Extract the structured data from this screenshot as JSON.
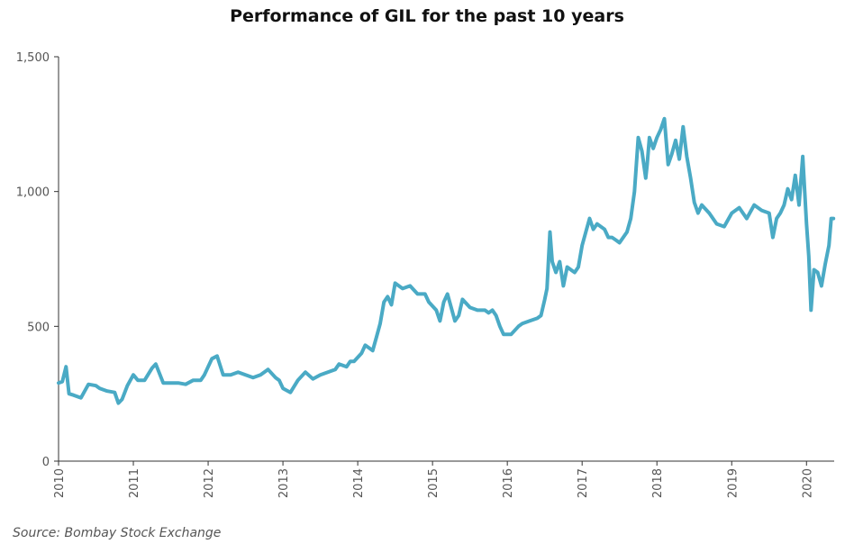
{
  "chart_data": {
    "type": "line",
    "title": "Performance of GIL for the past 10 years",
    "xlabel": "",
    "ylabel": "",
    "ylim": [
      0,
      1500
    ],
    "yticks": [
      {
        "value": 0,
        "label": "0"
      },
      {
        "value": 500,
        "label": "500"
      },
      {
        "value": 1000,
        "label": "1,000"
      },
      {
        "value": 1500,
        "label": "1,500"
      }
    ],
    "xlim": [
      2010.0,
      2020.37
    ],
    "xticks": [
      {
        "value": 2010,
        "label": "2010"
      },
      {
        "value": 2011,
        "label": "2011"
      },
      {
        "value": 2012,
        "label": "2012"
      },
      {
        "value": 2013,
        "label": "2013"
      },
      {
        "value": 2014,
        "label": "2014"
      },
      {
        "value": 2015,
        "label": "2015"
      },
      {
        "value": 2016,
        "label": "2016"
      },
      {
        "value": 2017,
        "label": "2017"
      },
      {
        "value": 2018,
        "label": "2018"
      },
      {
        "value": 2019,
        "label": "2019"
      },
      {
        "value": 2020,
        "label": "2020"
      }
    ],
    "grid": false,
    "legend": "none",
    "line_color": "#4aaac5",
    "series": [
      {
        "x": [
          2010.0,
          2010.05,
          2010.1,
          2010.14,
          2010.2,
          2010.3,
          2010.4,
          2010.5,
          2010.55,
          2010.65,
          2010.75,
          2010.8,
          2010.85,
          2010.92,
          2011.0,
          2011.06,
          2011.15,
          2011.25,
          2011.3,
          2011.4,
          2011.5,
          2011.6,
          2011.7,
          2011.8,
          2011.9,
          2011.95,
          2012.05,
          2012.12,
          2012.2,
          2012.3,
          2012.4,
          2012.5,
          2012.6,
          2012.7,
          2012.8,
          2012.9,
          2012.95,
          2013.0,
          2013.1,
          2013.2,
          2013.3,
          2013.4,
          2013.5,
          2013.6,
          2013.7,
          2013.75,
          2013.85,
          2013.9,
          2013.95,
          2014.05,
          2014.1,
          2014.15,
          2014.2,
          2014.25,
          2014.3,
          2014.35,
          2014.4,
          2014.45,
          2014.5,
          2014.6,
          2014.7,
          2014.8,
          2014.9,
          2014.95,
          2015.05,
          2015.1,
          2015.15,
          2015.2,
          2015.3,
          2015.35,
          2015.4,
          2015.5,
          2015.6,
          2015.7,
          2015.75,
          2015.8,
          2015.85,
          2015.9,
          2015.95,
          2016.05,
          2016.15,
          2016.2,
          2016.3,
          2016.4,
          2016.45,
          2016.5,
          2016.53,
          2016.57,
          2016.6,
          2016.65,
          2016.7,
          2016.75,
          2016.8,
          2016.85,
          2016.9,
          2016.95,
          2017.0,
          2017.05,
          2017.1,
          2017.15,
          2017.2,
          2017.3,
          2017.35,
          2017.4,
          2017.45,
          2017.5,
          2017.6,
          2017.65,
          2017.7,
          2017.75,
          2017.8,
          2017.85,
          2017.87,
          2017.9,
          2017.95,
          2018.0,
          2018.05,
          2018.1,
          2018.15,
          2018.2,
          2018.25,
          2018.3,
          2018.35,
          2018.4,
          2018.45,
          2018.5,
          2018.55,
          2018.6,
          2018.7,
          2018.8,
          2018.9,
          2019.0,
          2019.1,
          2019.2,
          2019.3,
          2019.4,
          2019.5,
          2019.55,
          2019.6,
          2019.65,
          2019.7,
          2019.75,
          2019.8,
          2019.85,
          2019.9,
          2019.95,
          2020.0,
          2020.03,
          2020.06,
          2020.1,
          2020.15,
          2020.2,
          2020.25,
          2020.3,
          2020.33,
          2020.36
        ],
        "values": [
          290,
          295,
          350,
          250,
          245,
          235,
          285,
          280,
          270,
          260,
          255,
          215,
          230,
          280,
          320,
          300,
          300,
          345,
          360,
          290,
          290,
          290,
          285,
          300,
          300,
          320,
          380,
          390,
          320,
          320,
          330,
          320,
          310,
          320,
          340,
          310,
          300,
          270,
          255,
          300,
          330,
          305,
          320,
          330,
          340,
          360,
          350,
          370,
          370,
          400,
          430,
          420,
          410,
          460,
          510,
          590,
          610,
          580,
          660,
          640,
          650,
          620,
          620,
          590,
          560,
          520,
          590,
          620,
          520,
          540,
          600,
          570,
          560,
          560,
          550,
          560,
          540,
          500,
          470,
          470,
          500,
          510,
          520,
          530,
          540,
          600,
          640,
          850,
          740,
          700,
          740,
          650,
          720,
          710,
          700,
          720,
          800,
          850,
          900,
          860,
          880,
          860,
          830,
          830,
          820,
          810,
          850,
          900,
          1000,
          1200,
          1150,
          1050,
          1100,
          1200,
          1160,
          1200,
          1230,
          1270,
          1100,
          1140,
          1190,
          1120,
          1240,
          1130,
          1050,
          960,
          920,
          950,
          920,
          880,
          870,
          920,
          940,
          900,
          950,
          930,
          920,
          830,
          900,
          920,
          950,
          1010,
          970,
          1060,
          950,
          1130,
          880,
          760,
          560,
          710,
          700,
          650,
          730,
          800,
          900,
          900
        ]
      }
    ]
  },
  "source_note": "Source: Bombay Stock Exchange"
}
